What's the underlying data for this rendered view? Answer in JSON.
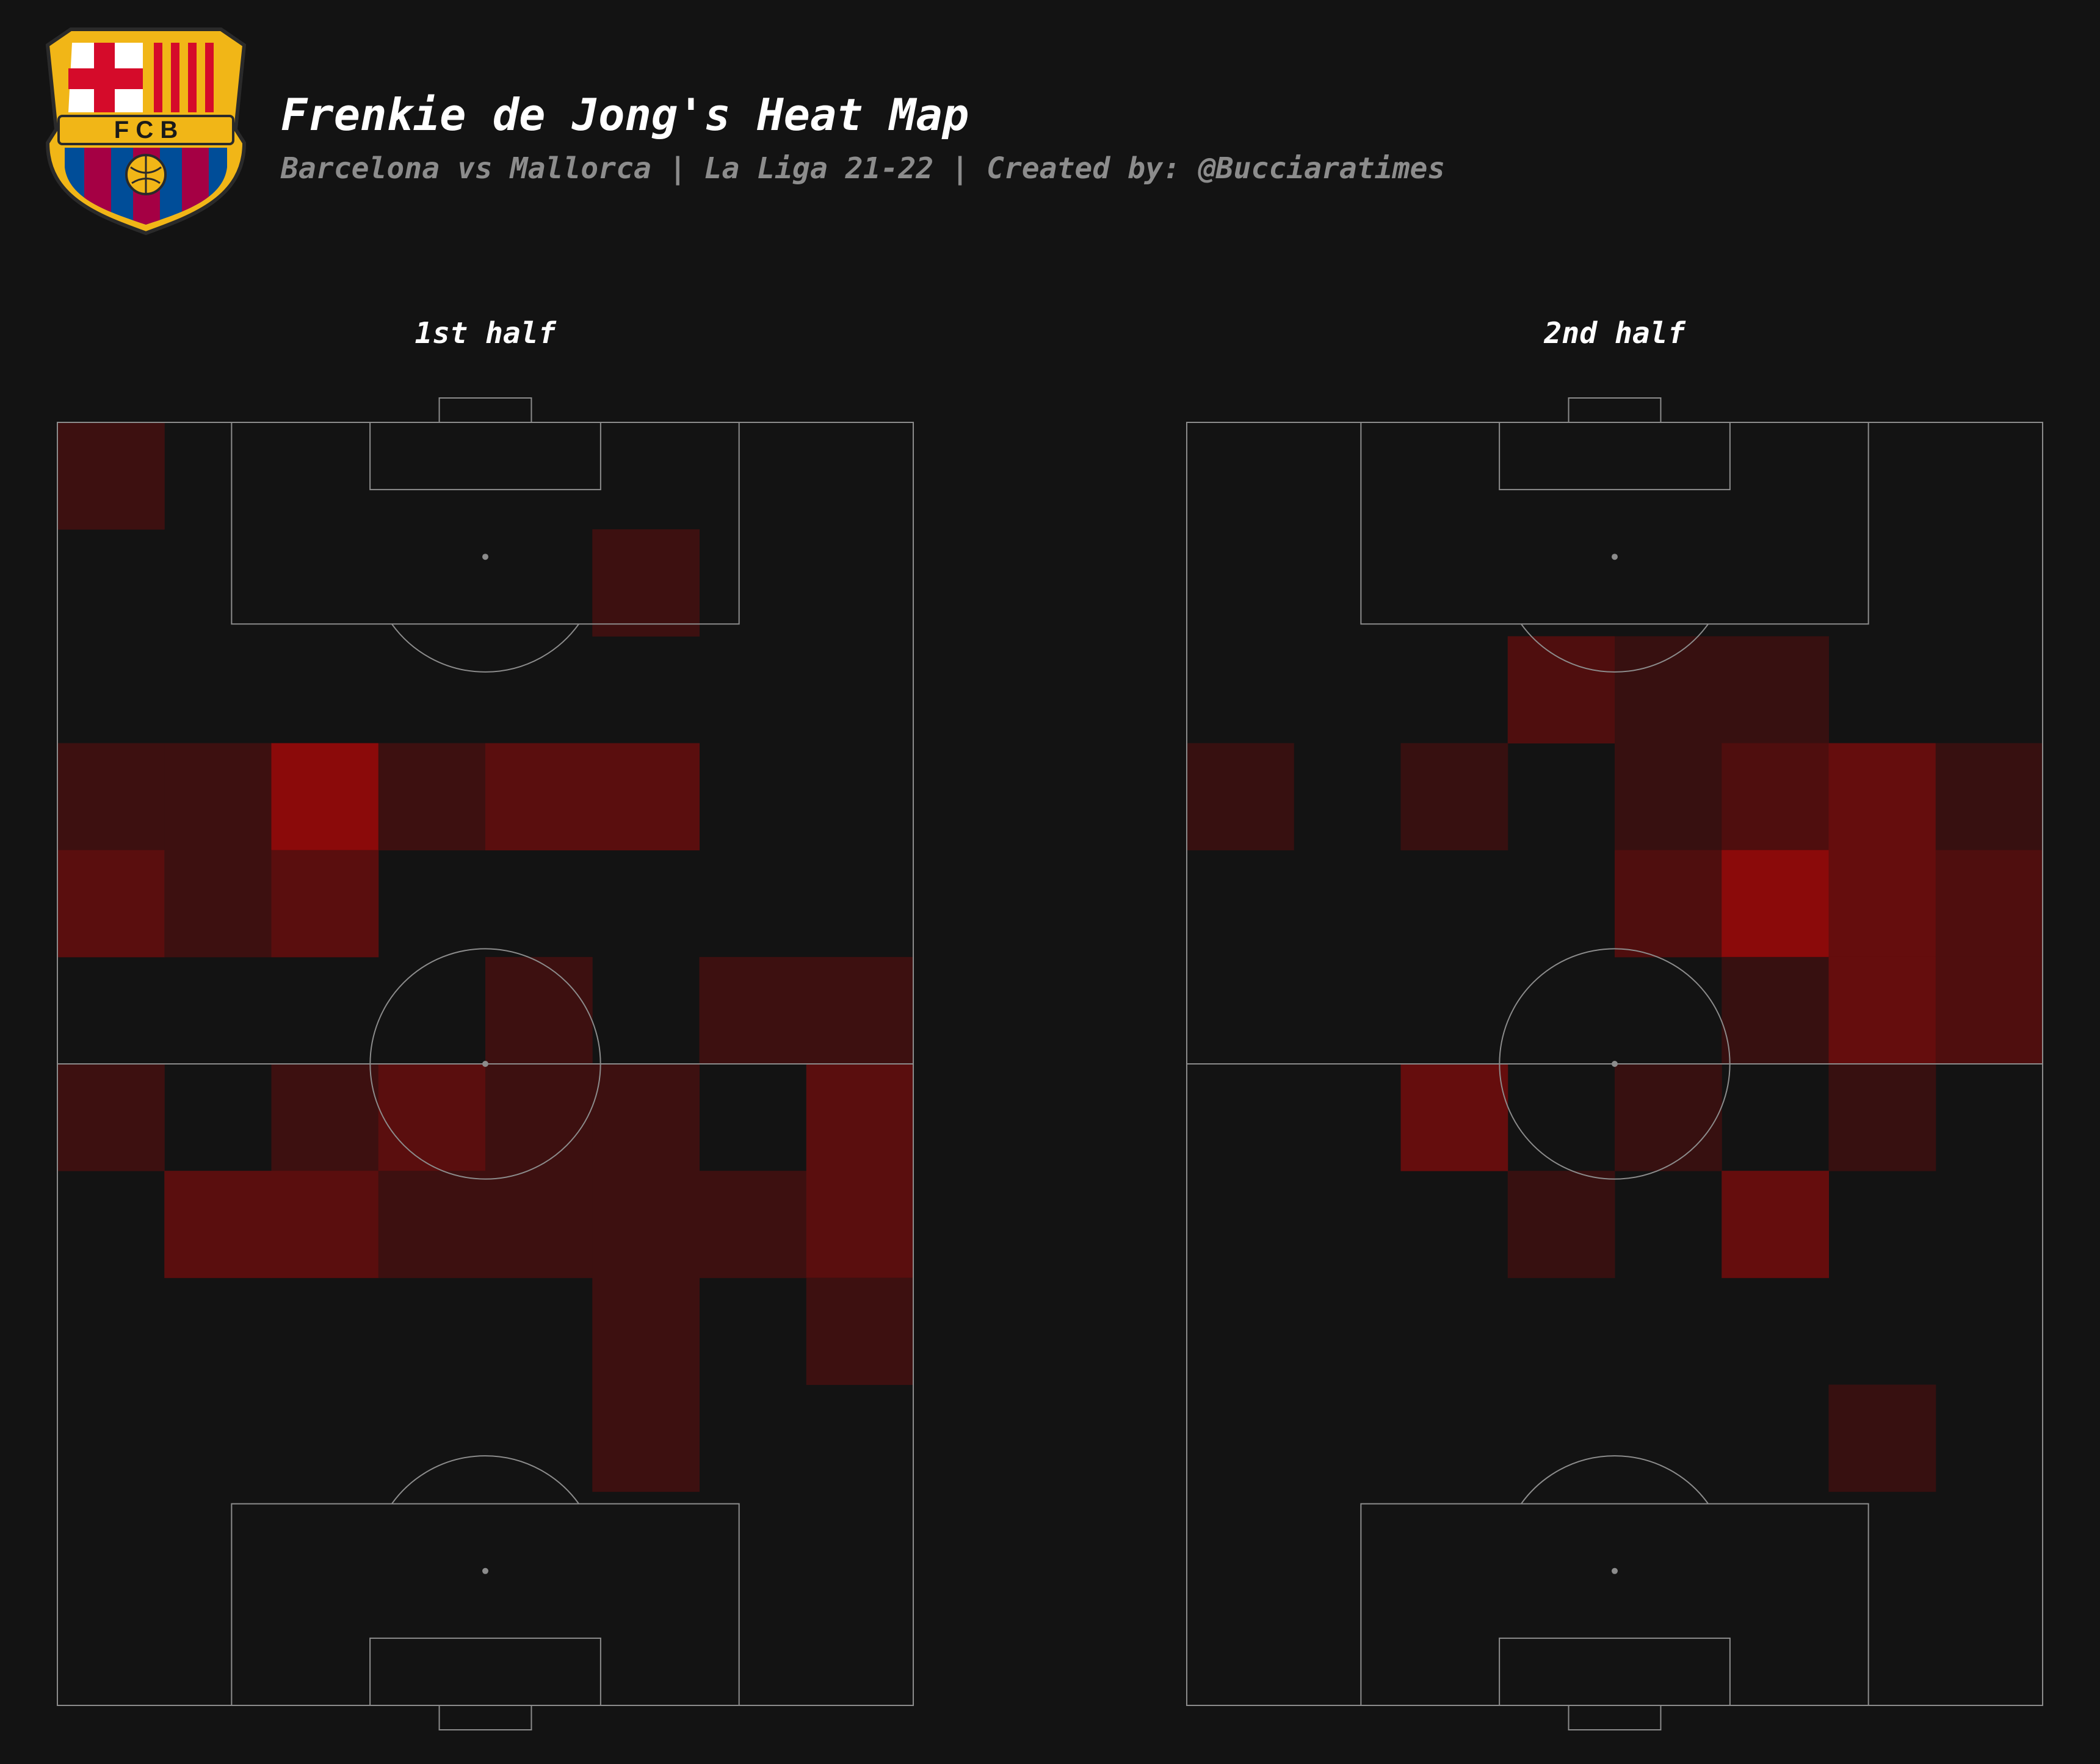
{
  "header": {
    "crest_letters": "F C B",
    "title": "Frenkie de Jong's Heat Map",
    "subtitle": "Barcelona vs Mallorca | La Liga 21-22 | Created by: @Bucciaratimes"
  },
  "colors": {
    "background": "#131313",
    "pitch_line": "#8c8c8c",
    "heat_low": "#131313",
    "heat_high": "#8b0a0a",
    "crest_gold": "#f1b617",
    "crest_red": "#a50044",
    "crest_blue": "#004d98"
  },
  "chart_data": [
    {
      "type": "heatmap",
      "title": "1st half",
      "grid": {
        "columns": 8,
        "rows": 12
      },
      "orientation": "vertical pitch, row 0 at top goal",
      "values": [
        [
          1,
          0,
          0,
          0,
          0,
          0,
          0,
          0
        ],
        [
          0,
          0,
          0,
          0,
          0,
          1,
          0,
          0
        ],
        [
          0,
          0,
          0,
          0,
          0,
          0,
          0,
          0
        ],
        [
          1,
          1,
          4,
          1,
          2,
          2,
          0,
          0
        ],
        [
          2,
          1,
          2,
          0,
          0,
          0,
          0,
          0
        ],
        [
          0,
          0,
          0,
          0,
          1,
          0,
          1,
          1
        ],
        [
          1,
          0,
          1,
          2,
          1,
          1,
          0,
          2
        ],
        [
          0,
          2,
          2,
          1,
          1,
          1,
          1,
          2
        ],
        [
          0,
          0,
          0,
          0,
          0,
          1,
          0,
          1
        ],
        [
          0,
          0,
          0,
          0,
          0,
          1,
          0,
          0
        ],
        [
          0,
          0,
          0,
          0,
          0,
          0,
          0,
          0
        ],
        [
          0,
          0,
          0,
          0,
          0,
          0,
          0,
          0
        ]
      ]
    },
    {
      "type": "heatmap",
      "title": "2nd half",
      "grid": {
        "columns": 8,
        "rows": 12
      },
      "orientation": "vertical pitch, row 0 at top goal",
      "values": [
        [
          0,
          0,
          0,
          0,
          0,
          0,
          0,
          0
        ],
        [
          0,
          0,
          0,
          0,
          0,
          0,
          0,
          0
        ],
        [
          0,
          0,
          0,
          2,
          1,
          1,
          0,
          0
        ],
        [
          1,
          0,
          1,
          0,
          1,
          2,
          3,
          1
        ],
        [
          0,
          0,
          0,
          0,
          2,
          5,
          3,
          2
        ],
        [
          0,
          0,
          0,
          0,
          0,
          1,
          3,
          2
        ],
        [
          0,
          0,
          3,
          0,
          1,
          0,
          1,
          0
        ],
        [
          0,
          0,
          0,
          1,
          0,
          3,
          0,
          0
        ],
        [
          0,
          0,
          0,
          0,
          0,
          0,
          0,
          0
        ],
        [
          0,
          0,
          0,
          0,
          0,
          0,
          1,
          0
        ],
        [
          0,
          0,
          0,
          0,
          0,
          0,
          0,
          0
        ],
        [
          0,
          0,
          0,
          0,
          0,
          0,
          0,
          0
        ]
      ]
    }
  ]
}
